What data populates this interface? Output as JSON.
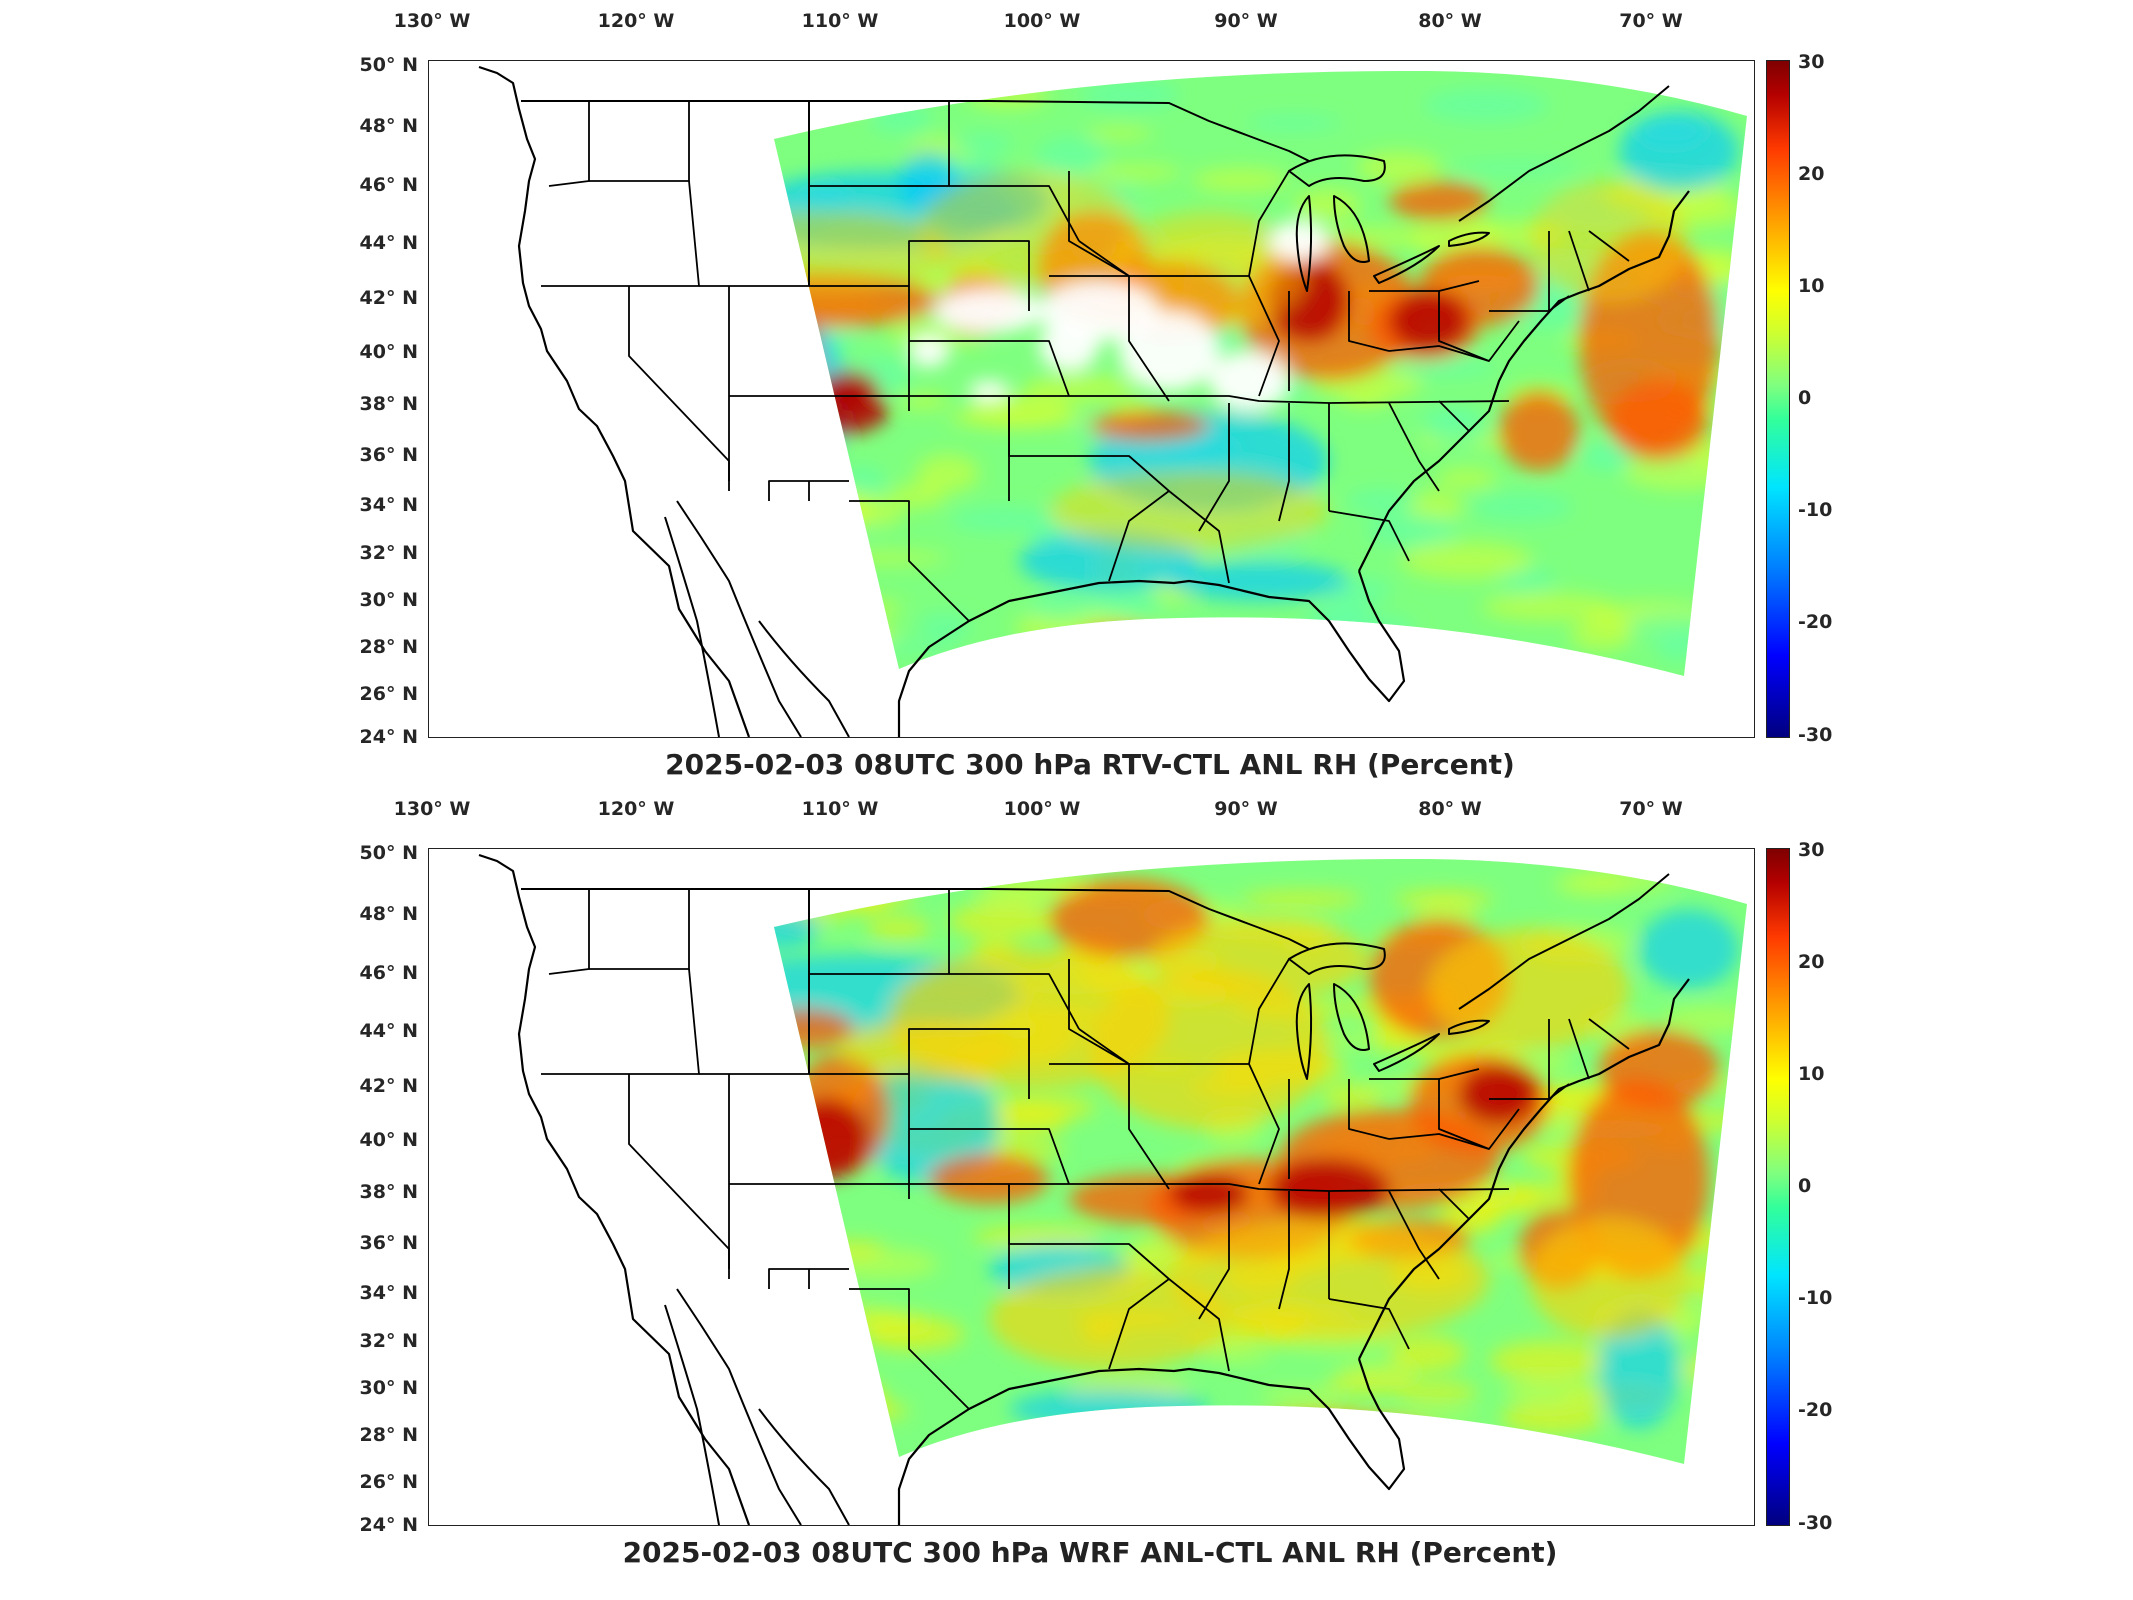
{
  "panels": [
    {
      "title": "2025-02-03 08UTC 300 hPa RTV-CTL ANL RH (Percent)",
      "lon_labels": [
        "130° W",
        "120° W",
        "110° W",
        "100° W",
        "90° W",
        "80° W",
        "70° W"
      ],
      "lat_labels": [
        "50° N",
        "48° N",
        "46° N",
        "44° N",
        "42° N",
        "40° N",
        "38° N",
        "36° N",
        "34° N",
        "32° N",
        "30° N",
        "28° N",
        "26° N",
        "24° N"
      ],
      "colorbar_ticks": [
        "30",
        "20",
        "10",
        "0",
        "-10",
        "-20",
        "-30"
      ],
      "variant": "rtv"
    },
    {
      "title": "2025-02-03 08UTC 300 hPa WRF ANL-CTL ANL RH (Percent)",
      "lon_labels": [
        "130° W",
        "120° W",
        "110° W",
        "100° W",
        "90° W",
        "80° W",
        "70° W"
      ],
      "lat_labels": [
        "50° N",
        "48° N",
        "46° N",
        "44° N",
        "42° N",
        "40° N",
        "38° N",
        "36° N",
        "34° N",
        "32° N",
        "30° N",
        "28° N",
        "26° N",
        "24° N"
      ],
      "colorbar_ticks": [
        "30",
        "20",
        "10",
        "0",
        "-10",
        "-20",
        "-30"
      ],
      "variant": "wrf"
    }
  ],
  "colors": {
    "field_base": "#7fff7f",
    "positive_strong": "#b40000",
    "positive": "#ff5a00",
    "moderate": "#ffd000",
    "negative": "#00c8ff",
    "missing": "#ffffff"
  }
}
